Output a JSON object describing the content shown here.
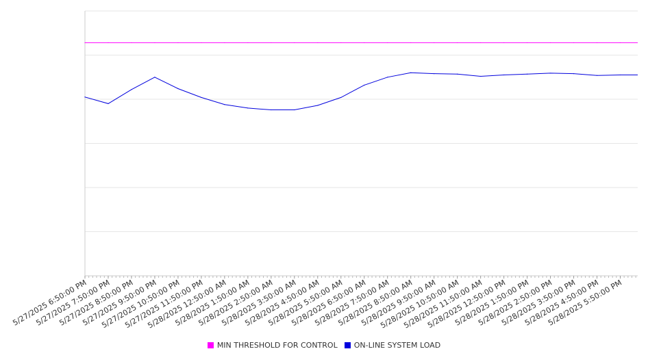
{
  "chart_data": {
    "type": "line",
    "x": [
      "5/27/2025 6:50:00 PM",
      "5/27/2025 7:50:00 PM",
      "5/27/2025 8:50:00 PM",
      "5/27/2025 9:50:00 PM",
      "5/27/2025 10:50:00 PM",
      "5/27/2025 11:50:00 PM",
      "5/28/2025 12:50:00 AM",
      "5/28/2025 1:50:00 AM",
      "5/28/2025 2:50:00 AM",
      "5/28/2025 3:50:00 AM",
      "5/28/2025 4:50:00 AM",
      "5/28/2025 5:50:00 AM",
      "5/28/2025 6:50:00 AM",
      "5/28/2025 7:50:00 AM",
      "5/28/2025 8:50:00 AM",
      "5/28/2025 9:50:00 AM",
      "5/28/2025 10:50:00 AM",
      "5/28/2025 11:50:00 AM",
      "5/28/2025 12:50:00 PM",
      "5/28/2025 1:50:00 PM",
      "5/28/2025 2:50:00 PM",
      "5/28/2025 3:50:00 PM",
      "5/28/2025 4:50:00 PM",
      "5/28/2025 5:50:00 PM"
    ],
    "ylim": [
      0,
      6
    ],
    "grid": true,
    "y_tick_labels_visible": false,
    "legend_position": "bottom-center",
    "series": [
      {
        "name": "MIN THRESHOLD FOR CONTROL",
        "color": "#cc00cc",
        "values": [
          5.28,
          5.28,
          5.28,
          5.28,
          5.28,
          5.28,
          5.28,
          5.28,
          5.28,
          5.28,
          5.28,
          5.28,
          5.28,
          5.28,
          5.28,
          5.28,
          5.28,
          5.28,
          5.28,
          5.28,
          5.28,
          5.28,
          5.28,
          5.28
        ]
      },
      {
        "name": "ON-LINE SYSTEM LOAD",
        "color": "#0000cc",
        "values": [
          4.05,
          3.9,
          4.22,
          4.5,
          4.24,
          4.04,
          3.88,
          3.8,
          3.76,
          3.76,
          3.86,
          4.04,
          4.32,
          4.5,
          4.6,
          4.58,
          4.57,
          4.52,
          4.55,
          4.57,
          4.59,
          4.58,
          4.54,
          4.55
        ]
      }
    ]
  },
  "legend_labels": [
    "MIN THRESHOLD FOR CONTROL",
    "ON-LINE SYSTEM LOAD"
  ],
  "colors": {
    "threshold": "#ff00ff",
    "load": "#0000dd"
  }
}
